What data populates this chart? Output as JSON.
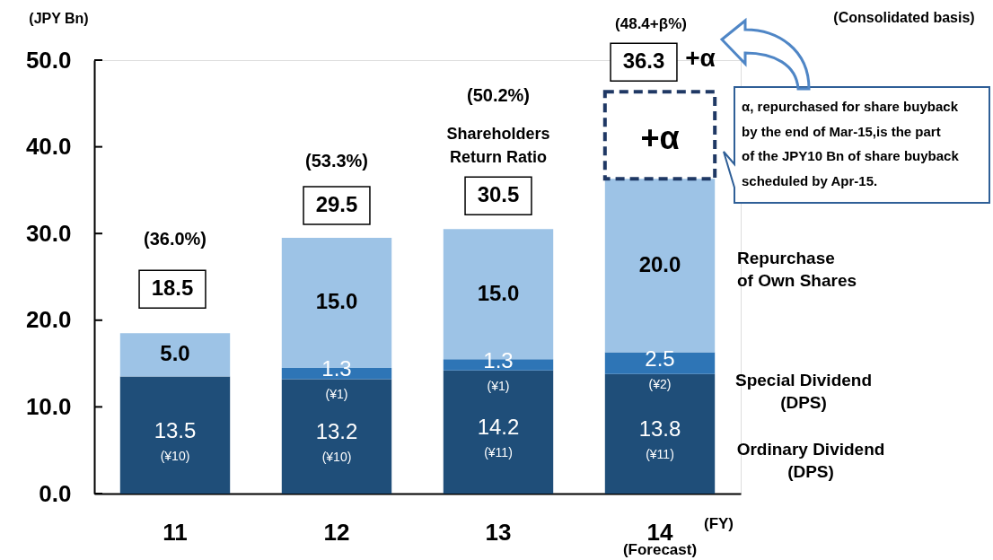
{
  "chart_data": {
    "type": "bar",
    "stacked": true,
    "categories": [
      "11",
      "12",
      "13",
      "14"
    ],
    "series": [
      {
        "name": "Ordinary Dividend\n(DPS)",
        "color": "#1f4e79",
        "values": [
          13.5,
          13.2,
          14.2,
          13.8
        ],
        "value_labels": [
          "13.5\n(¥10)",
          "13.2\n(¥10)",
          "14.2\n(¥11)",
          "13.8\n(¥11)"
        ]
      },
      {
        "name": "Special Dividend\n(DPS)",
        "color": "#2e75b6",
        "values": [
          null,
          1.3,
          1.3,
          2.5
        ],
        "value_labels": [
          null,
          "1.3\n(¥1)",
          "1.3\n(¥1)",
          "2.5\n(¥2)"
        ]
      },
      {
        "name": "Repurchase\nof Own Shares",
        "color": "#9dc3e6",
        "values": [
          5.0,
          15.0,
          15.0,
          20.0
        ],
        "value_labels": [
          "5.0",
          "15.0",
          "15.0",
          "20.0"
        ]
      }
    ],
    "totals": [
      "18.5",
      "29.5",
      "30.5",
      null
    ],
    "ylabel": "(JPY Bn)",
    "xlabel": "(FY)",
    "ylim": [
      0,
      50
    ],
    "yticks": [
      {
        "value": 0,
        "label": "0.0"
      },
      {
        "value": 10,
        "label": "10.0"
      },
      {
        "value": 20,
        "label": "20.0"
      },
      {
        "value": 30,
        "label": "30.0"
      },
      {
        "value": 40,
        "label": "40.0"
      },
      {
        "value": 50,
        "label": "50.0"
      }
    ],
    "annotations": [
      "(36.0%)",
      "(53.3%)",
      "(50.2%)",
      "Shareholders\nReturn Ratio",
      "(48.4+β%)",
      "36.3",
      "+α",
      "+α",
      "α, repurchased for share buyback\nby the end of Mar-15,is the part\nof the JPY10 Bn of share buyback\nscheduled by Apr-15.",
      "(Consolidated basis)",
      "(Forecast)"
    ]
  }
}
